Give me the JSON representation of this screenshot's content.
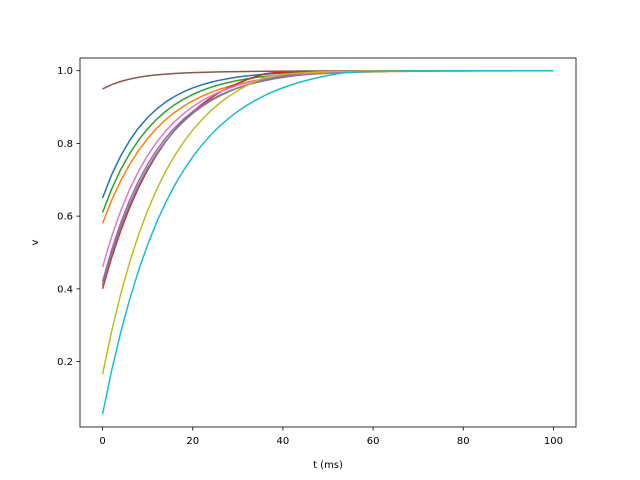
{
  "chart_data": {
    "type": "line",
    "title": "",
    "xlabel": "t (ms)",
    "ylabel": "v",
    "xlim": [
      -5,
      105
    ],
    "ylim": [
      0.02,
      1.035
    ],
    "xticks": [
      0,
      20,
      40,
      60,
      80,
      100
    ],
    "yticks": [
      0.2,
      0.4,
      0.6,
      0.8,
      1.0
    ],
    "xtick_labels": [
      "0",
      "20",
      "40",
      "60",
      "80",
      "100"
    ],
    "ytick_labels": [
      "0.2",
      "0.4",
      "0.6",
      "0.8",
      "1.0"
    ],
    "grid": false,
    "legend": "none",
    "x": [
      0,
      2,
      4,
      6,
      8,
      10,
      12,
      14,
      16,
      18,
      20,
      22,
      24,
      26,
      28,
      30,
      32,
      34,
      36,
      38,
      40,
      42,
      44,
      46,
      48,
      50,
      52,
      54,
      56,
      58,
      60,
      62,
      64,
      66,
      68,
      70,
      72,
      74,
      76,
      78,
      80,
      82,
      84,
      86,
      88,
      90,
      92,
      94,
      96,
      98,
      100
    ],
    "series": [
      {
        "color": "#1f77b4",
        "values": [
          0.65,
          0.7133,
          0.765,
          0.8078,
          0.8428,
          0.8713,
          0.8947,
          0.9138,
          0.9294,
          0.9422,
          0.9527,
          0.9613,
          0.9683,
          0.974,
          0.9787,
          0.9826,
          0.9857,
          0.9883,
          0.9904,
          0.9922,
          0.9936,
          0.9948,
          0.9957,
          0.9965,
          0.9971,
          0.9977,
          0.9981,
          0.9984,
          0.9987,
          0.999,
          0.9991,
          0.9993,
          0.9994,
          0.9995,
          0.9996,
          0.9997,
          0.9997,
          0.9998,
          0.9998,
          0.9998,
          0.9999,
          0.9999,
          0.9999,
          0.9999,
          0.9999,
          0.9999,
          1.0,
          1.0,
          1.0,
          1.0,
          1.0
        ]
      },
      {
        "color": "#ff7f0e",
        "values": [
          0.58,
          0.6432,
          0.6966,
          0.7421,
          0.7807,
          0.8135,
          0.8414,
          0.8653,
          0.8855,
          0.9026,
          0.9172,
          0.9296,
          0.9402,
          0.9492,
          0.9568,
          0.9633,
          0.9688,
          0.9735,
          0.9775,
          0.9809,
          0.9837,
          0.9862,
          0.9883,
          0.99,
          0.9915,
          0.9928,
          0.9939,
          0.9948,
          0.9956,
          0.9963,
          0.9968,
          0.9973,
          0.9977,
          0.998,
          0.9983,
          0.9986,
          0.9988,
          0.999,
          0.9991,
          0.9993,
          0.9994,
          0.9995,
          0.9995,
          0.9996,
          0.9997,
          0.9997,
          0.9998,
          0.9998,
          0.9998,
          0.9998,
          0.9999
        ]
      },
      {
        "color": "#2ca02c",
        "values": [
          0.61,
          0.6739,
          0.7273,
          0.7719,
          0.8092,
          0.8404,
          0.8665,
          0.8883,
          0.9066,
          0.9218,
          0.9346,
          0.9453,
          0.9543,
          0.9617,
          0.968,
          0.9732,
          0.9776,
          0.9813,
          0.9843,
          0.9869,
          0.989,
          0.9908,
          0.9923,
          0.9936,
          0.9946,
          0.9955,
          0.9962,
          0.9969,
          0.9974,
          0.9978,
          0.9982,
          0.9985,
          0.9987,
          0.9989,
          0.9991,
          0.9993,
          0.9994,
          0.9995,
          0.9996,
          0.9996,
          0.9997,
          0.9997,
          0.9998,
          0.9998,
          0.9998,
          0.9999,
          0.9999,
          0.9999,
          0.9999,
          0.9999,
          0.9999
        ]
      },
      {
        "color": "#d62728",
        "values": [
          0.4,
          0.4853,
          0.5592,
          0.6233,
          0.6789,
          0.7271,
          0.7689,
          0.805,
          0.8364,
          0.8636,
          0.8872,
          0.9076,
          0.9253,
          0.9407,
          0.954,
          0.9655,
          0.9755,
          0.9841,
          0.9916,
          0.9944,
          0.9958,
          0.9968,
          0.9976,
          0.9982,
          0.9986,
          0.999,
          0.9992,
          0.9994,
          0.9995,
          0.9996,
          0.9997,
          0.9998,
          0.9998,
          0.9999,
          0.9999,
          0.9999,
          0.9999,
          1.0,
          1.0,
          1.0,
          1.0,
          1.0,
          1.0,
          1.0,
          1.0,
          1.0,
          1.0,
          1.0,
          1.0,
          1.0,
          1.0
        ]
      },
      {
        "color": "#9467bd",
        "values": [
          0.42,
          0.5067,
          0.5806,
          0.6435,
          0.6971,
          0.7428,
          0.7817,
          0.8148,
          0.8431,
          0.8672,
          0.8877,
          0.9052,
          0.92,
          0.9327,
          0.9435,
          0.9527,
          0.9605,
          0.9671,
          0.9728,
          0.9776,
          0.9817,
          0.9852,
          0.9882,
          0.9907,
          0.9928,
          0.9946,
          0.9961,
          0.9974,
          0.9985,
          0.9989,
          0.9991,
          0.9993,
          0.9994,
          0.9995,
          0.9996,
          0.9997,
          0.9997,
          0.9998,
          0.9998,
          0.9999,
          0.9999,
          0.9999,
          0.9999,
          0.9999,
          1.0,
          1.0,
          1.0,
          1.0,
          1.0,
          1.0,
          1.0
        ]
      },
      {
        "color": "#8c564b",
        "values": [
          0.95,
          0.9617,
          0.9704,
          0.977,
          0.982,
          0.9857,
          0.9886,
          0.9907,
          0.9924,
          0.9937,
          0.9947,
          0.9955,
          0.9962,
          0.9967,
          0.9972,
          0.9976,
          0.9979,
          0.9982,
          0.9984,
          0.9986,
          0.9988,
          0.9989,
          0.9991,
          0.9992,
          0.9993,
          0.9994,
          0.9995,
          0.9995,
          0.9996,
          0.9996,
          0.9997,
          0.9997,
          0.9998,
          0.9998,
          0.9998,
          0.9998,
          0.9999,
          0.9999,
          0.9999,
          0.9999,
          0.9999,
          0.9999,
          0.9999,
          0.9999,
          1.0,
          1.0,
          1.0,
          1.0,
          1.0,
          1.0,
          1.0
        ]
      },
      {
        "color": "#e377c2",
        "values": [
          0.46,
          0.5432,
          0.6138,
          0.6736,
          0.7242,
          0.767,
          0.8033,
          0.8341,
          0.8602,
          0.8823,
          0.9011,
          0.917,
          0.9305,
          0.9419,
          0.9516,
          0.9598,
          0.9668,
          0.9727,
          0.9777,
          0.9819,
          0.9855,
          0.9885,
          0.9911,
          0.9933,
          0.9951,
          0.9966,
          0.9978,
          0.9985,
          0.9989,
          0.9991,
          0.9993,
          0.9995,
          0.9996,
          0.9997,
          0.9997,
          0.9998,
          0.9998,
          0.9999,
          0.9999,
          0.9999,
          0.9999,
          0.9999,
          1.0,
          1.0,
          1.0,
          1.0,
          1.0,
          1.0,
          1.0,
          1.0,
          1.0
        ]
      },
      {
        "color": "#7f7f7f",
        "values": [
          0.41,
          0.4953,
          0.5686,
          0.6316,
          0.6857,
          0.7322,
          0.772,
          0.8062,
          0.8356,
          0.8608,
          0.8825,
          0.9011,
          0.917,
          0.9307,
          0.9424,
          0.9525,
          0.9611,
          0.9685,
          0.9749,
          0.9803,
          0.985,
          0.989,
          0.9924,
          0.9953,
          0.9969,
          0.9976,
          0.9982,
          0.9986,
          0.999,
          0.9992,
          0.9994,
          0.9995,
          0.9996,
          0.9997,
          0.9998,
          0.9998,
          0.9999,
          0.9999,
          0.9999,
          0.9999,
          1.0,
          1.0,
          1.0,
          1.0,
          1.0,
          1.0,
          1.0,
          1.0,
          1.0,
          1.0,
          1.0
        ]
      },
      {
        "color": "#bcbd22",
        "values": [
          0.165,
          0.2825,
          0.3844,
          0.4727,
          0.5493,
          0.6158,
          0.6734,
          0.7234,
          0.7667,
          0.8043,
          0.8369,
          0.8652,
          0.8897,
          0.911,
          0.9294,
          0.9454,
          0.9593,
          0.9713,
          0.9818,
          0.9868,
          0.9897,
          0.992,
          0.9938,
          0.9951,
          0.9962,
          0.997,
          0.9977,
          0.9982,
          0.9986,
          0.9989,
          0.9991,
          0.9993,
          0.9995,
          0.9996,
          0.9997,
          0.9997,
          0.9998,
          0.9998,
          0.9999,
          0.9999,
          0.9999,
          0.9999,
          0.9999,
          1.0,
          1.0,
          1.0,
          1.0,
          1.0,
          1.0,
          1.0,
          1.0
        ]
      },
      {
        "color": "#17becf",
        "values": [
          0.055,
          0.1743,
          0.2789,
          0.3706,
          0.451,
          0.5215,
          0.5833,
          0.6375,
          0.685,
          0.7266,
          0.7631,
          0.7951,
          0.8232,
          0.8478,
          0.8694,
          0.8883,
          0.9049,
          0.9194,
          0.9322,
          0.9434,
          0.9532,
          0.9618,
          0.9693,
          0.9759,
          0.9817,
          0.9868,
          0.9912,
          0.995,
          0.9962,
          0.9971,
          0.9978,
          0.9983,
          0.9987,
          0.999,
          0.9992,
          0.9994,
          0.9995,
          0.9996,
          0.9997,
          0.9998,
          0.9998,
          0.9999,
          0.9999,
          0.9999,
          0.9999,
          0.9999,
          1.0,
          1.0,
          1.0,
          1.0,
          1.0
        ]
      }
    ]
  }
}
